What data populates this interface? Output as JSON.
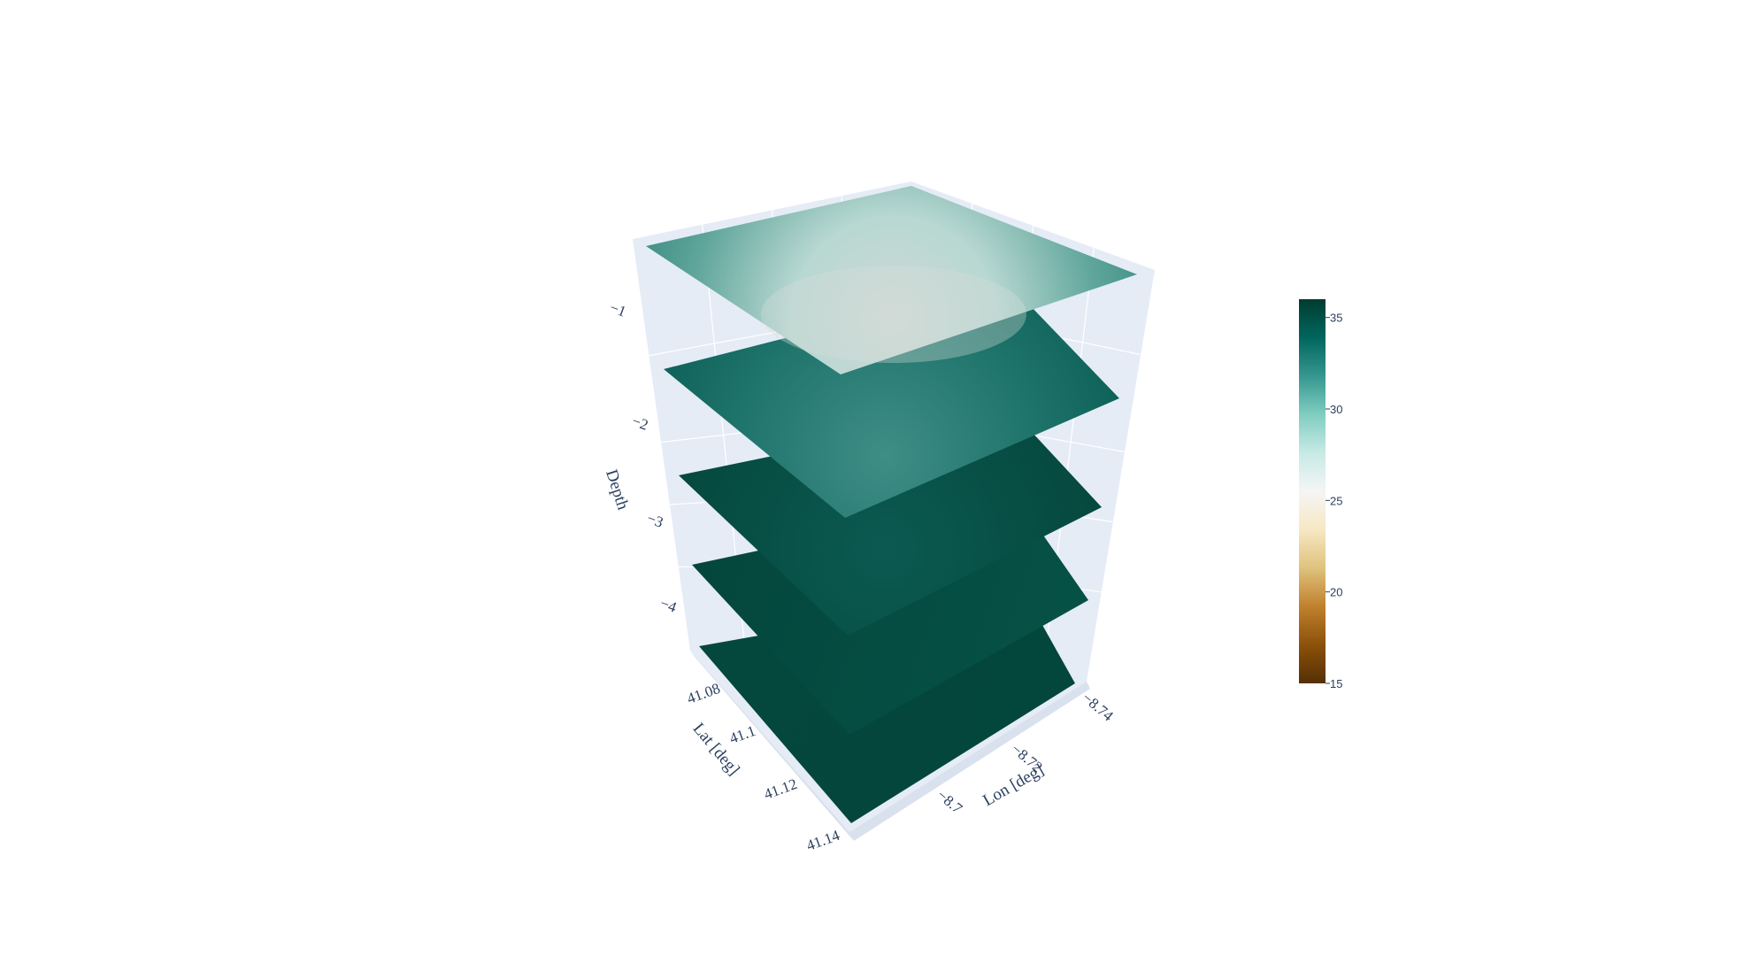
{
  "chart_data": {
    "type": "surface3d",
    "title": "",
    "xaxis": {
      "title": "Lat [deg]",
      "ticks": [
        "41.08",
        "41.1",
        "41.12",
        "41.14"
      ]
    },
    "yaxis": {
      "title": "Lon [deg]",
      "ticks": [
        "−8.7",
        "−8.72",
        "−8.74"
      ]
    },
    "zaxis": {
      "title": "Depth",
      "ticks": [
        "−1",
        "−2",
        "−3",
        "−4"
      ]
    },
    "colorscale": "BrBG",
    "colorbar": {
      "min": 15,
      "max": 36,
      "ticks": [
        "35",
        "30",
        "25",
        "20",
        "15"
      ]
    },
    "layers": [
      {
        "depth": -0.6,
        "value_range": [
          26,
          31
        ]
      },
      {
        "depth": -1.9,
        "value_range": [
          31,
          34
        ]
      },
      {
        "depth": -3.0,
        "value_range": [
          34,
          35.5
        ]
      },
      {
        "depth": -3.9,
        "value_range": [
          35,
          36
        ]
      },
      {
        "depth": -4.4,
        "value_range": [
          35.5,
          36
        ]
      }
    ],
    "colors": {
      "scene_bg": "#e5ecf6",
      "grid": "#ffffff",
      "text": "#2a3f5f"
    }
  }
}
